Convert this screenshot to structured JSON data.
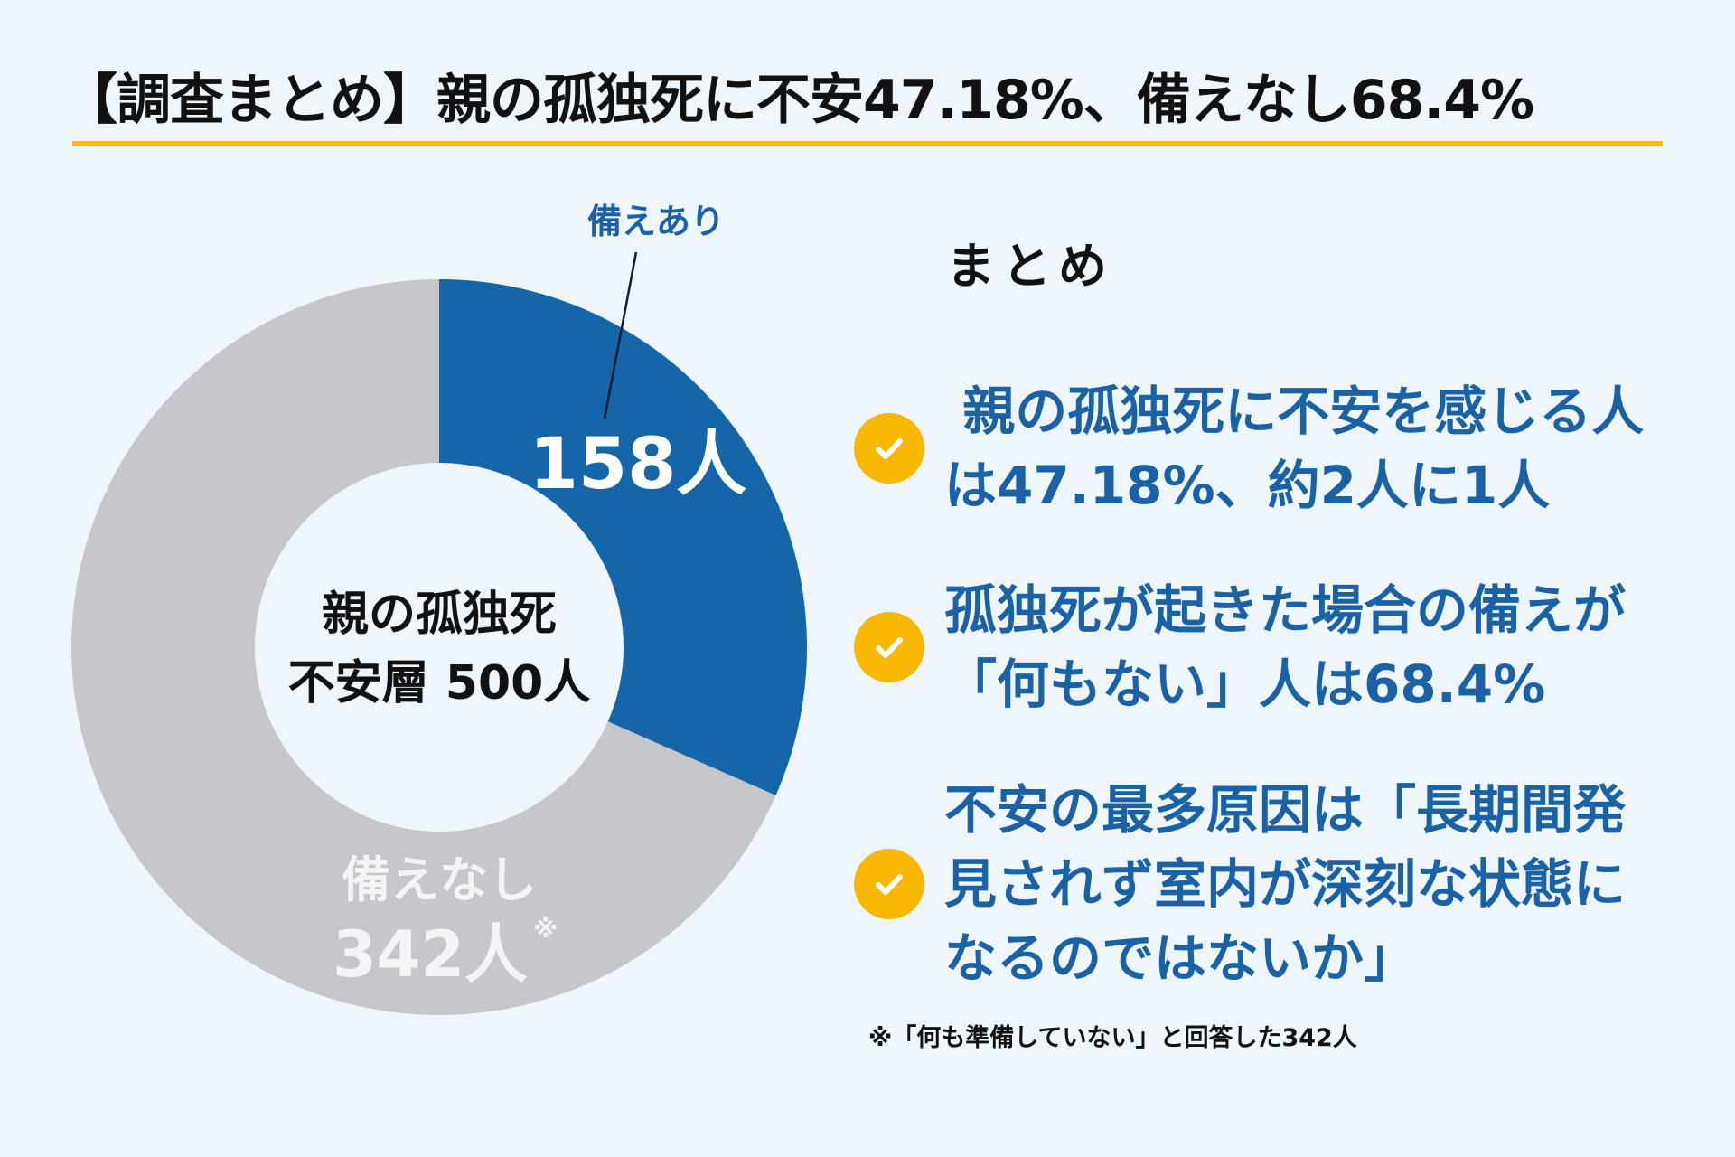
{
  "title": "【調査まとめ】親の孤独死に不安47.18%、備えなし68.4%",
  "colors": {
    "background": "#eef6fb",
    "accent": "#f5b914",
    "blue": "#1565a9",
    "gray": "#c6c6cb",
    "text_blue": "#1a62a5"
  },
  "chart_data": {
    "type": "pie",
    "donut": true,
    "center_label": [
      "親の孤独死",
      "不安層 500人"
    ],
    "slices": [
      {
        "label": "備えあり",
        "value": 158,
        "value_label": "158人",
        "color": "#1565a9"
      },
      {
        "label": "備えなし",
        "value": 342,
        "value_label": "342人",
        "note_mark": "※",
        "color": "#c6c6cb"
      }
    ],
    "total": 500
  },
  "summary": {
    "heading": "まとめ",
    "icon": "check-circle-icon",
    "items": [
      {
        "lines": [
          " 親の孤独死に不安を感じる人",
          "は47.18%、約2人に1人"
        ]
      },
      {
        "lines": [
          "孤独死が起きた場合の備えが",
          "「何もない」人は68.4%"
        ]
      },
      {
        "lines": [
          "不安の最多原因は「長期間発",
          "見されず室内が深刻な状態に",
          "なるのではないか」"
        ]
      }
    ]
  },
  "footnote": "※「何も準備していない」と回答した342人"
}
